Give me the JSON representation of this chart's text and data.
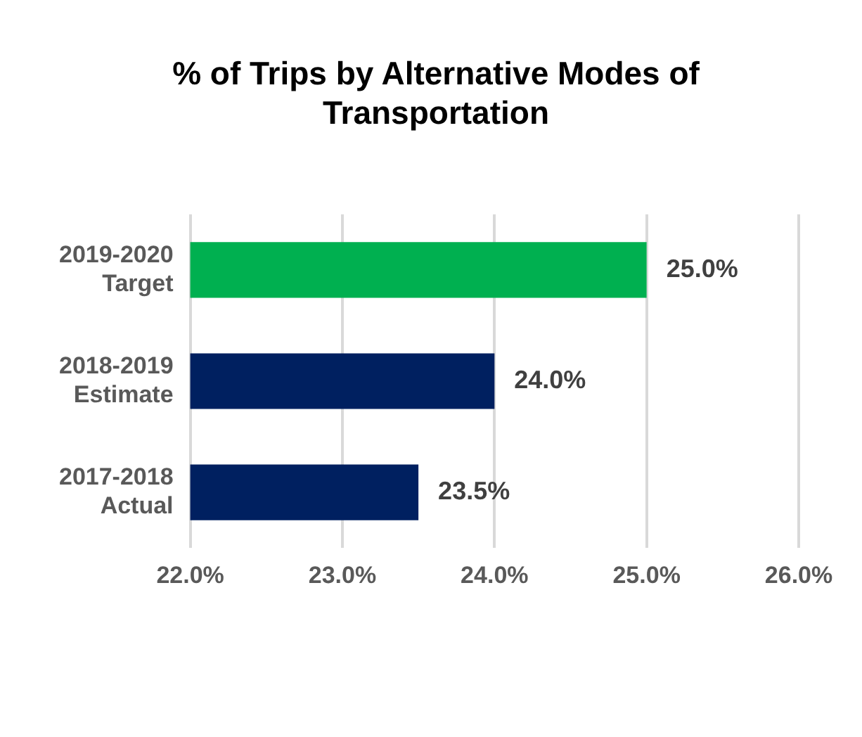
{
  "chart_data": {
    "type": "bar",
    "orientation": "horizontal",
    "title": "% of Trips by Alternative Modes of Transportation",
    "categories": [
      "2019-2020\nTarget",
      "2018-2019\nEstimate",
      "2017-2018\nActual"
    ],
    "values": [
      25.0,
      24.0,
      23.5
    ],
    "colors": [
      "#00b050",
      "#002060",
      "#002060"
    ],
    "value_labels": [
      "25.0%",
      "24.0%",
      "23.5%"
    ],
    "xlim": [
      22,
      26
    ],
    "xticks": [
      {
        "value": 22,
        "label": "22.0%"
      },
      {
        "value": 23,
        "label": "23.0%"
      },
      {
        "value": 24,
        "label": "24.0%"
      },
      {
        "value": 25,
        "label": "25.0%"
      },
      {
        "value": 26,
        "label": "26.0%"
      }
    ],
    "grid": "x",
    "legend": false
  }
}
